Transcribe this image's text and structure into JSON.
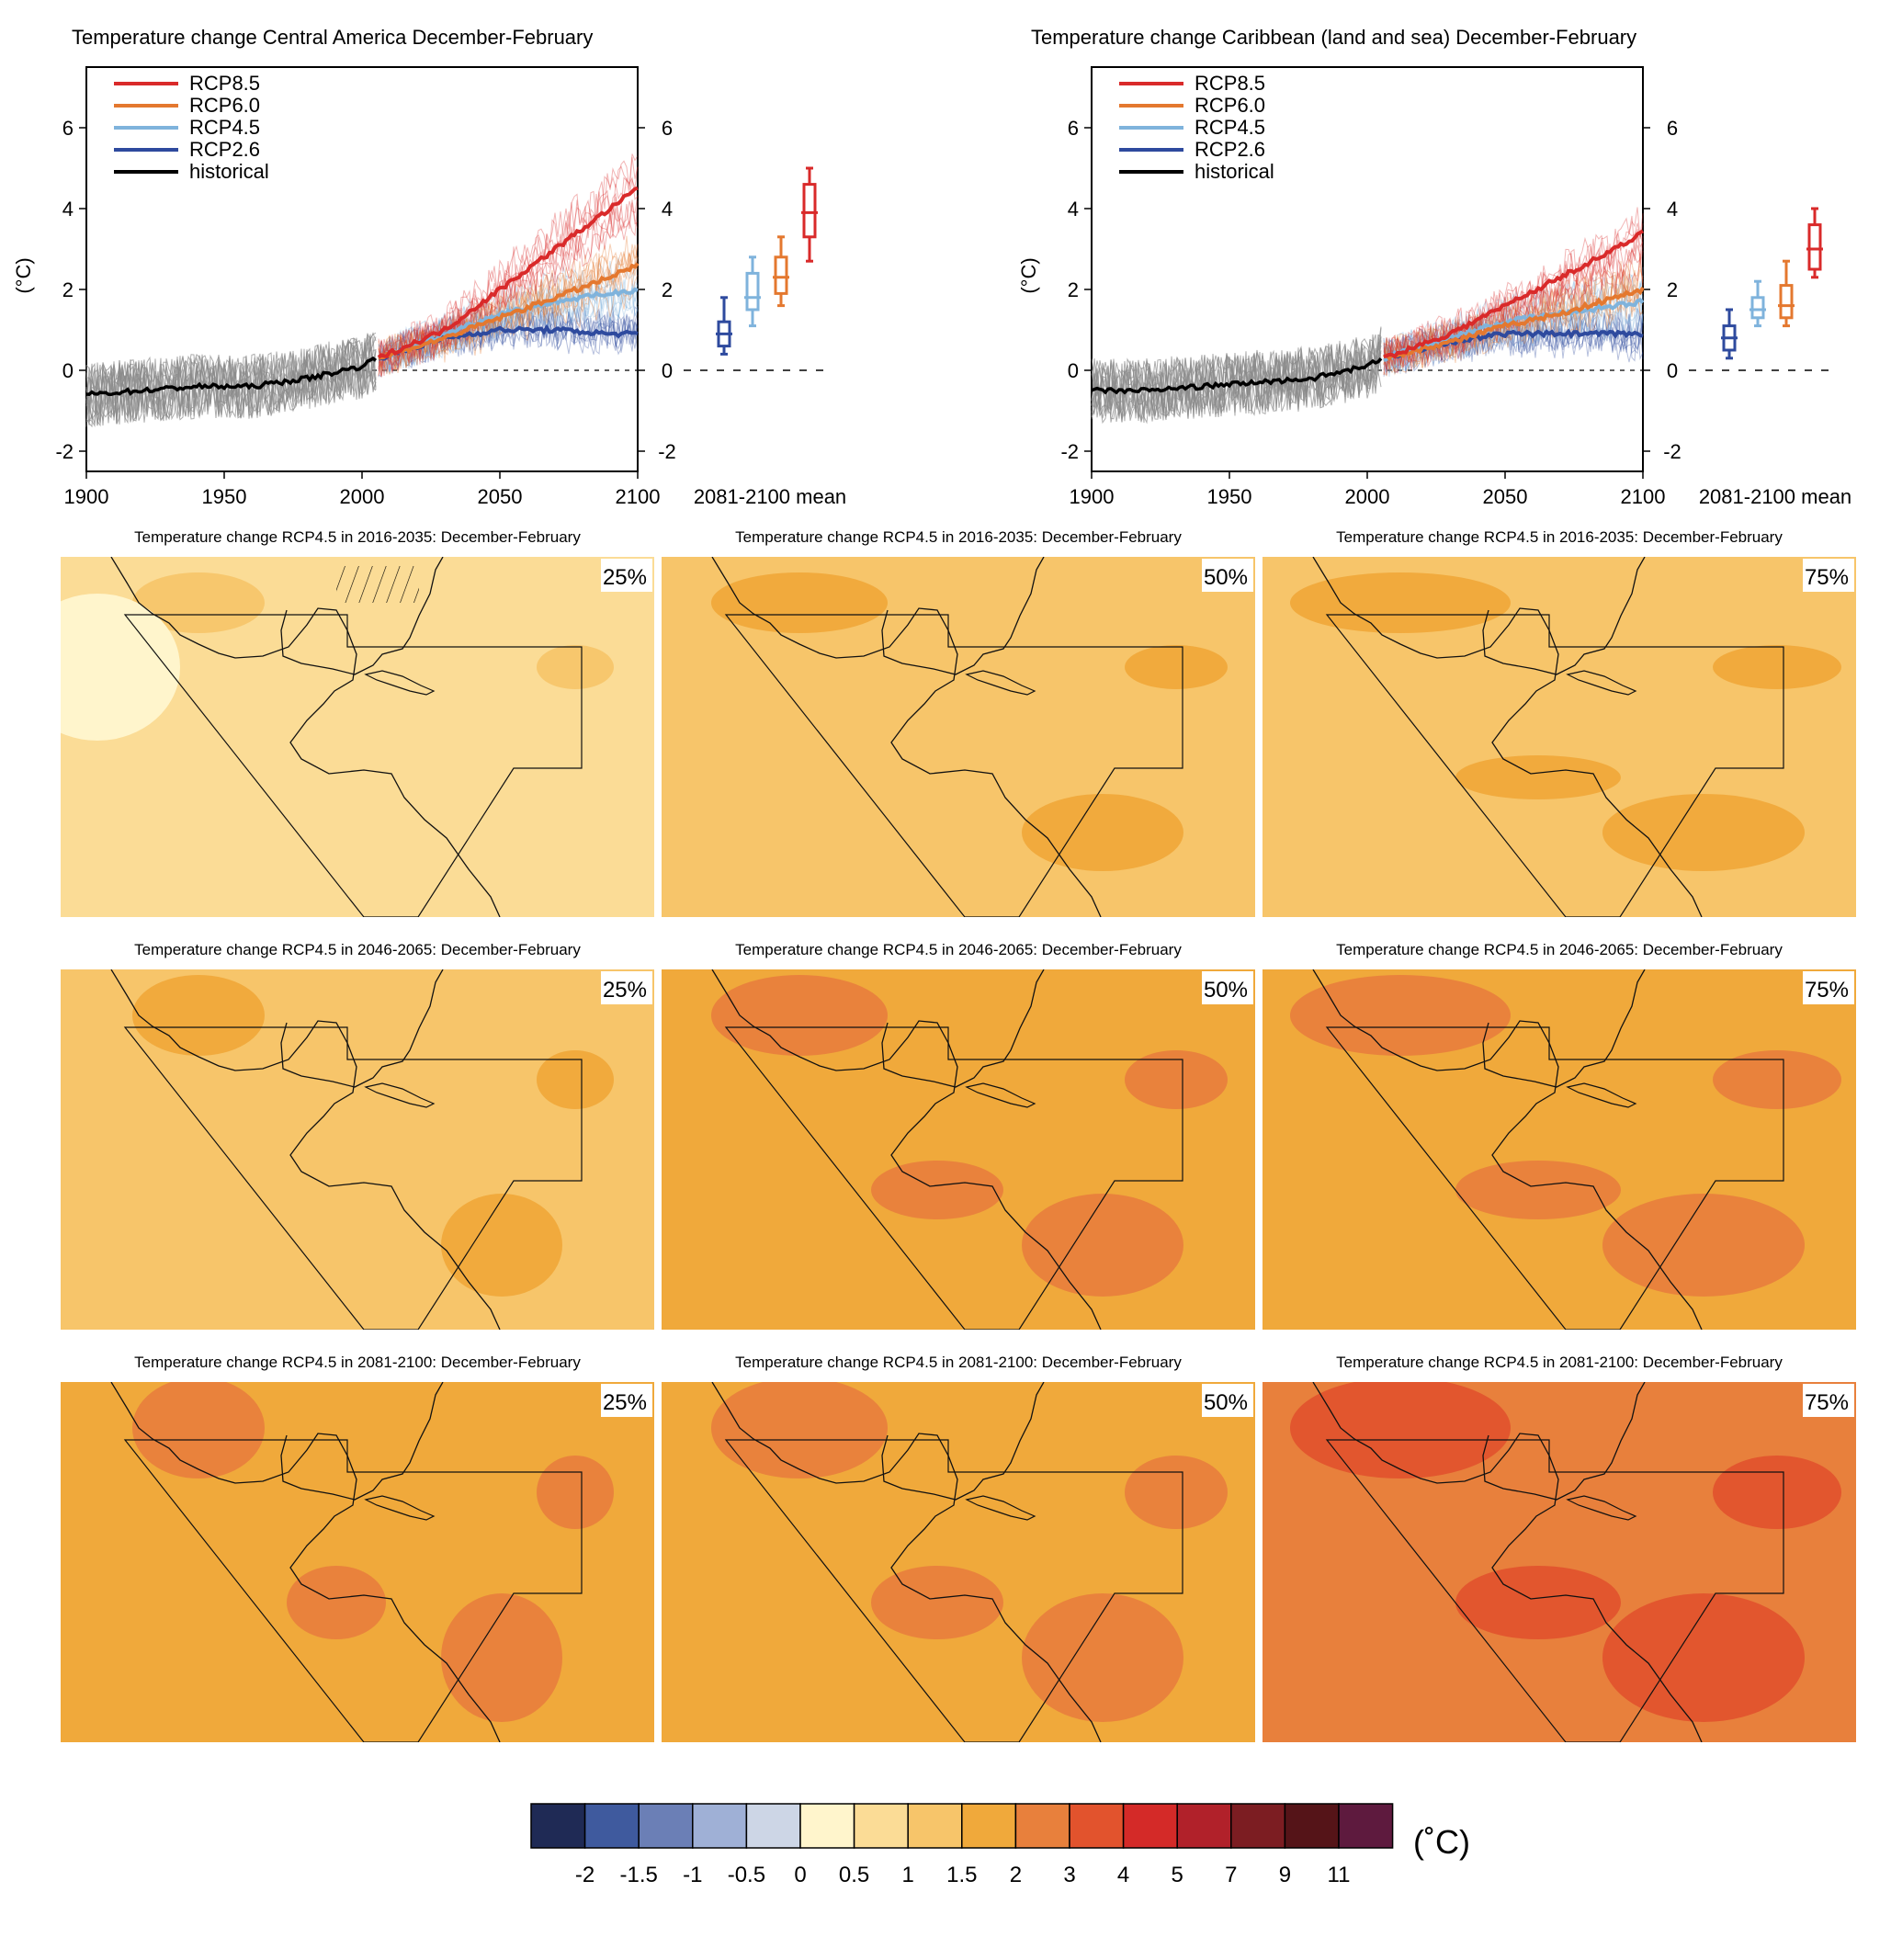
{
  "chart_data": [
    {
      "type": "line",
      "title": "Temperature change Central America December-February",
      "ylabel": "(°C)",
      "xlim": [
        1900,
        2100
      ],
      "ylim": [
        -2.5,
        7.5
      ],
      "x_ticks": [
        "1900",
        "1950",
        "2000",
        "2050",
        "2100"
      ],
      "y_ticks": [
        "-2",
        "0",
        "2",
        "4",
        "6"
      ],
      "box_label": "2081-2100 mean",
      "series": [
        {
          "name": "RCP8.5",
          "color": "#d92a2a",
          "x": [
            2006,
            2030,
            2050,
            2070,
            2090,
            2100
          ],
          "values": [
            0.3,
            1.0,
            2.0,
            3.0,
            4.0,
            4.5
          ]
        },
        {
          "name": "RCP6.0",
          "color": "#e4782f",
          "x": [
            2006,
            2030,
            2050,
            2070,
            2090,
            2100
          ],
          "values": [
            0.3,
            0.8,
            1.3,
            1.8,
            2.3,
            2.6
          ]
        },
        {
          "name": "RCP4.5",
          "color": "#7fb3dc",
          "x": [
            2006,
            2030,
            2050,
            2070,
            2090,
            2100
          ],
          "values": [
            0.3,
            0.9,
            1.4,
            1.7,
            1.9,
            2.0
          ]
        },
        {
          "name": "RCP2.6",
          "color": "#2e4a9e",
          "x": [
            2006,
            2030,
            2050,
            2070,
            2090,
            2100
          ],
          "values": [
            0.3,
            0.8,
            1.0,
            1.0,
            0.9,
            0.9
          ]
        },
        {
          "name": "historical",
          "color": "#000000",
          "x": [
            1900,
            1920,
            1940,
            1960,
            1980,
            2000,
            2005
          ],
          "values": [
            -0.6,
            -0.5,
            -0.4,
            -0.4,
            -0.2,
            0.1,
            0.3
          ]
        }
      ],
      "boxes": [
        {
          "series": "RCP2.6",
          "min": 0.4,
          "q1": 0.6,
          "median": 0.9,
          "q3": 1.2,
          "max": 1.8
        },
        {
          "series": "RCP4.5",
          "min": 1.1,
          "q1": 1.5,
          "median": 1.8,
          "q3": 2.4,
          "max": 2.8
        },
        {
          "series": "RCP6.0",
          "min": 1.6,
          "q1": 1.9,
          "median": 2.3,
          "q3": 2.8,
          "max": 3.3
        },
        {
          "series": "RCP8.5",
          "min": 2.7,
          "q1": 3.3,
          "median": 3.9,
          "q3": 4.6,
          "max": 5.0
        }
      ]
    },
    {
      "type": "line",
      "title": "Temperature change Caribbean (land and sea) December-February",
      "ylabel": "(°C)",
      "xlim": [
        1900,
        2100
      ],
      "ylim": [
        -2.5,
        7.5
      ],
      "x_ticks": [
        "1900",
        "1950",
        "2000",
        "2050",
        "2100"
      ],
      "y_ticks": [
        "-2",
        "0",
        "2",
        "4",
        "6"
      ],
      "box_label": "2081-2100 mean",
      "series": [
        {
          "name": "RCP8.5",
          "color": "#d92a2a",
          "x": [
            2006,
            2030,
            2050,
            2070,
            2090,
            2100
          ],
          "values": [
            0.3,
            0.9,
            1.6,
            2.3,
            3.0,
            3.4
          ]
        },
        {
          "name": "RCP6.0",
          "color": "#e4782f",
          "x": [
            2006,
            2030,
            2050,
            2070,
            2090,
            2100
          ],
          "values": [
            0.3,
            0.7,
            1.1,
            1.4,
            1.8,
            2.0
          ]
        },
        {
          "name": "RCP4.5",
          "color": "#7fb3dc",
          "x": [
            2006,
            2030,
            2050,
            2070,
            2090,
            2100
          ],
          "values": [
            0.3,
            0.8,
            1.2,
            1.4,
            1.6,
            1.7
          ]
        },
        {
          "name": "RCP2.6",
          "color": "#2e4a9e",
          "x": [
            2006,
            2030,
            2050,
            2070,
            2090,
            2100
          ],
          "values": [
            0.3,
            0.7,
            0.9,
            0.9,
            0.9,
            0.9
          ]
        },
        {
          "name": "historical",
          "color": "#000000",
          "x": [
            1900,
            1920,
            1940,
            1960,
            1980,
            2000,
            2005
          ],
          "values": [
            -0.5,
            -0.5,
            -0.4,
            -0.3,
            -0.2,
            0.1,
            0.3
          ]
        }
      ],
      "boxes": [
        {
          "series": "RCP2.6",
          "min": 0.3,
          "q1": 0.5,
          "median": 0.8,
          "q3": 1.1,
          "max": 1.5
        },
        {
          "series": "RCP4.5",
          "min": 1.1,
          "q1": 1.3,
          "median": 1.5,
          "q3": 1.8,
          "max": 2.2
        },
        {
          "series": "RCP6.0",
          "min": 1.1,
          "q1": 1.3,
          "median": 1.6,
          "q3": 2.1,
          "max": 2.7
        },
        {
          "series": "RCP8.5",
          "min": 2.3,
          "q1": 2.5,
          "median": 3.0,
          "q3": 3.6,
          "max": 4.0
        }
      ]
    },
    {
      "type": "heatmap",
      "map_title_prefix": "Temperature change RCP4.5 in ",
      "map_title_suffix": ": December-February",
      "periods": [
        "2016-2035",
        "2046-2065",
        "2081-2100"
      ],
      "percentiles": [
        "25%",
        "50%",
        "75%"
      ],
      "base_levels": [
        [
          0.5,
          1.0,
          1.0
        ],
        [
          1.0,
          1.5,
          1.5
        ],
        [
          1.5,
          1.5,
          2.0
        ]
      ],
      "colorbar": {
        "unit": "(˚C)",
        "ticks": [
          "-2",
          "-1.5",
          "-1",
          "-0.5",
          "0",
          "0.5",
          "1",
          "1.5",
          "2",
          "3",
          "4",
          "5",
          "7",
          "9",
          "11"
        ],
        "colors": [
          "#1f2a55",
          "#3f5a9e",
          "#6b7fb6",
          "#9fb0d6",
          "#cdd6e6",
          "#fff5cc",
          "#fbdc96",
          "#f7c56a",
          "#f0a93b",
          "#e8803c",
          "#e2532d",
          "#d42a28",
          "#b1212a",
          "#7c1d22",
          "#551418",
          "#5e1a3e"
        ]
      }
    }
  ]
}
